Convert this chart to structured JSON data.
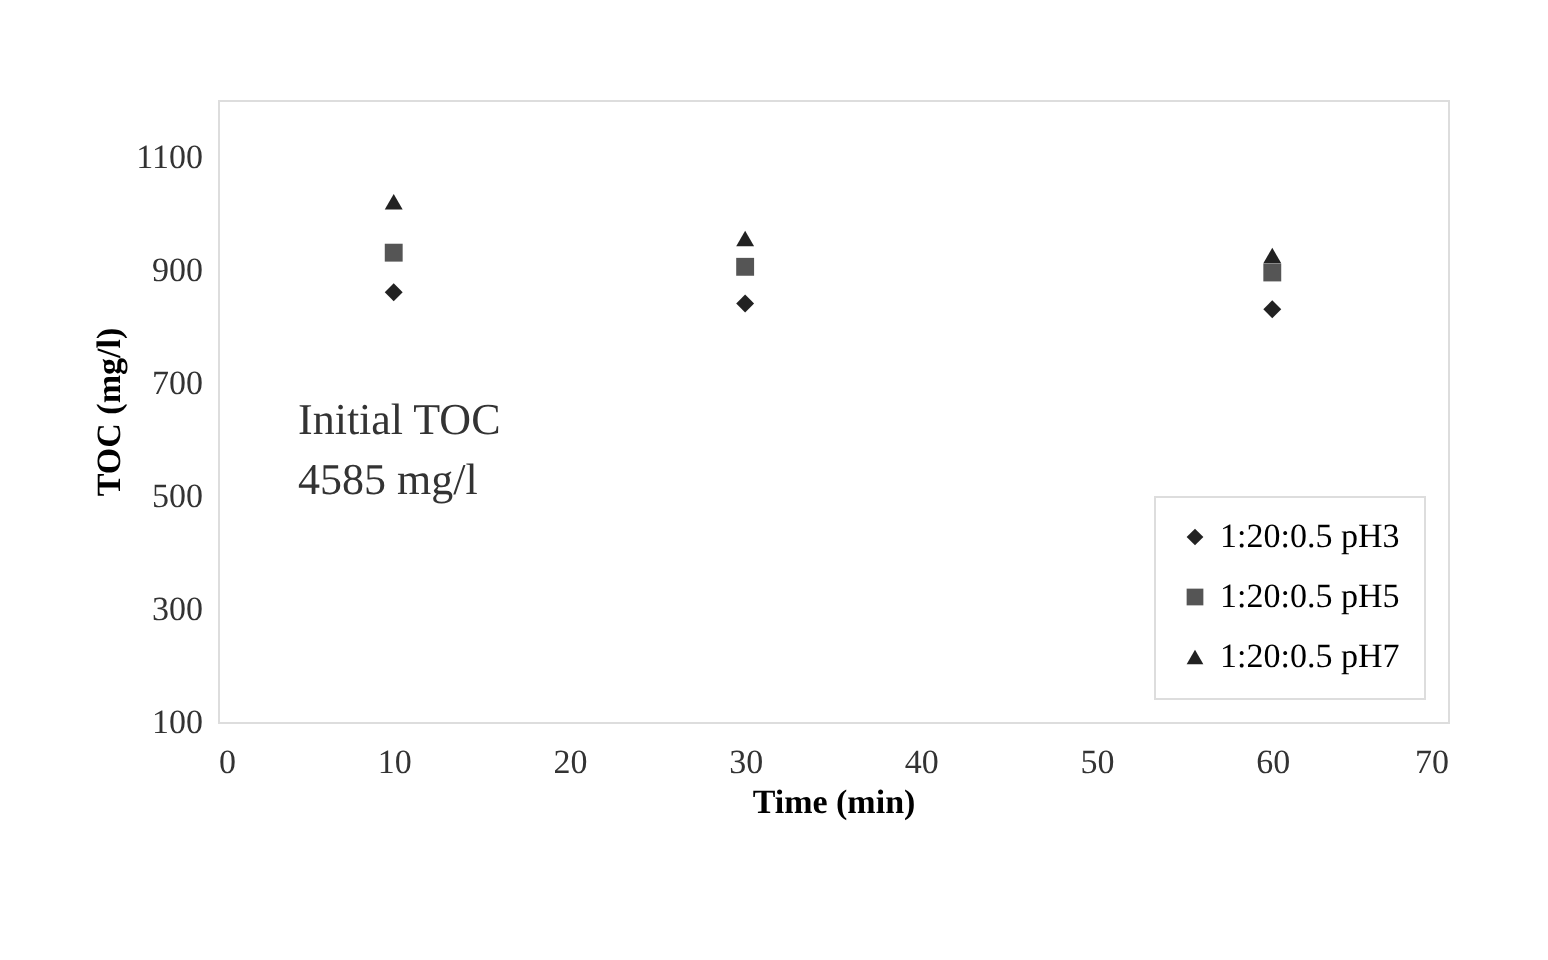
{
  "chart_data": {
    "type": "scatter",
    "xlabel": "Time (min)",
    "ylabel": "TOC (mg/l)",
    "x": [
      10,
      30,
      60
    ],
    "series": [
      {
        "name": "1:20:0.5 pH3",
        "color": "#222222",
        "marker": "diamond",
        "values": [
          860,
          840,
          830
        ]
      },
      {
        "name": "1:20:0.5 pH5",
        "color": "#555555",
        "marker": "square",
        "values": [
          930,
          905,
          895
        ]
      },
      {
        "name": "1:20:0.5 pH7",
        "color": "#222222",
        "marker": "triangle",
        "values": [
          1020,
          955,
          925
        ]
      }
    ],
    "xlim": [
      0,
      70
    ],
    "xticks": [
      0,
      10,
      20,
      30,
      40,
      50,
      60,
      70
    ],
    "ylim": [
      100,
      1200
    ],
    "yticks": [
      100,
      300,
      500,
      700,
      900,
      1100
    ],
    "annotations": [
      "Initial TOC\n4585 mg/l"
    ],
    "grid": false,
    "legend": "bottom right"
  }
}
